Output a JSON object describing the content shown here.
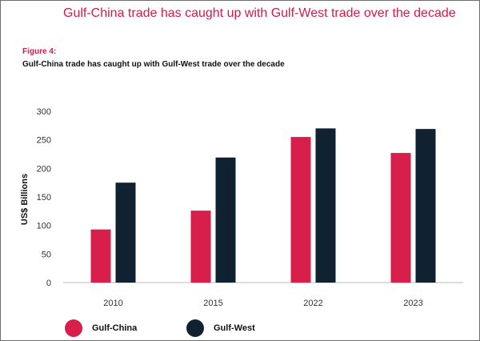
{
  "header": {
    "headline": "Gulf-China trade has caught up with Gulf-West trade over the decade",
    "figure_label": "Figure 4:",
    "figure_title": "Gulf-China trade has caught up with Gulf-West trade over the decade"
  },
  "colors": {
    "headline": "#d01b4c",
    "gulf_china": "#d81e4a",
    "gulf_west": "#102232"
  },
  "chart_data": {
    "type": "bar",
    "categories": [
      "2010",
      "2015",
      "2022",
      "2023"
    ],
    "series": [
      {
        "name": "Gulf-China",
        "values": [
          93,
          126,
          255,
          227
        ]
      },
      {
        "name": "Gulf-West",
        "values": [
          175,
          219,
          270,
          269
        ]
      }
    ],
    "ylabel": "US$ Billions",
    "ylim": [
      0,
      300
    ],
    "yticks": [
      0,
      50,
      100,
      150,
      200,
      250,
      300
    ],
    "grid": false,
    "legend_position": "bottom-left"
  }
}
